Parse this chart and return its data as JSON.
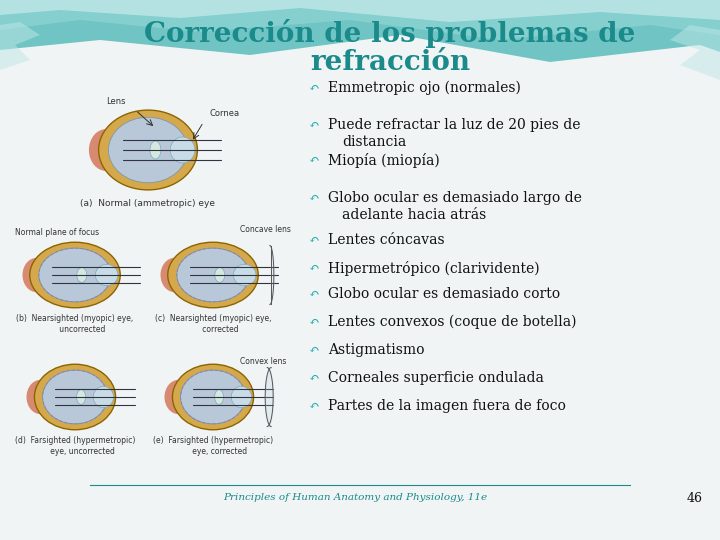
{
  "title_line1": "Corrección de los problemas de",
  "title_line2": "refracción",
  "title_color": "#1A8A8A",
  "background_color": "#F0F4F4",
  "bullet_color": "#20AAAA",
  "bullet_items_line1": [
    "Emmetropic ojo (normales)",
    "Puede refractar la luz de 20 pies de",
    "Miopía (miopía)",
    "Globo ocular es demasiado largo de",
    "Lentes cóncavas",
    "Hipermetrópico (clarividente)",
    "Globo ocular es demasiado corto",
    "Lentes convexos (coque de botella)",
    "Astigmatismo",
    "Corneales superficie ondulada",
    "Partes de la imagen fuera de foco"
  ],
  "bullet_items_line2": [
    "",
    "distancia",
    "",
    "adelante hacia atrás",
    "",
    "",
    "",
    "",
    "",
    "",
    ""
  ],
  "footer_text": "Principles of Human Anatomy and Physiology, 11e",
  "footer_page": "46",
  "footer_color": "#1A8A8A",
  "text_color": "#111111",
  "wave_color_deep": "#5BBCBC",
  "wave_color_mid": "#8ED4D4",
  "wave_color_light": "#C0E8E8",
  "eye_outer": "#D4A84B",
  "eye_sclera": "#B8C8D8",
  "eye_iris": "#90AAC0",
  "eye_muscle": "#D4785A",
  "eye_cornea": "#C8DCE8"
}
